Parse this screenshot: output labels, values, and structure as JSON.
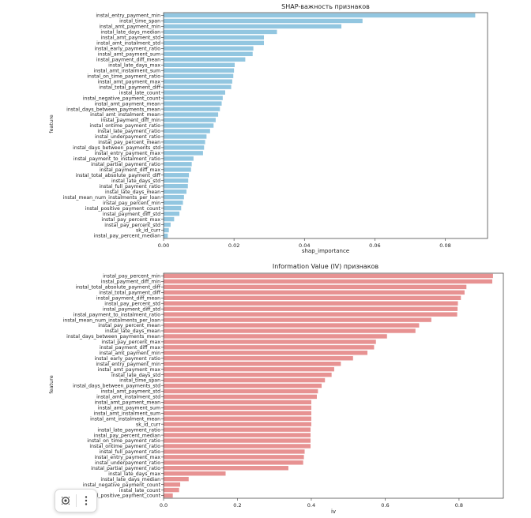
{
  "chart_data": [
    {
      "type": "bar",
      "orientation": "horizontal",
      "title": "SHAP-важность признаков",
      "xlabel": "shap_importance",
      "ylabel": "feature",
      "xlim": [
        0,
        0.092
      ],
      "xticks": [
        "0.00",
        "0.02",
        "0.04",
        "0.06",
        "0.08"
      ],
      "color": "#92c6e0",
      "categories": [
        "instal_entry_payment_min",
        "instal_time_span",
        "instal_amt_payment_min",
        "instal_late_days_median",
        "instal_amt_payment_std",
        "instal_amt_instalment_std",
        "instal_early_payment_ratio",
        "instal_amt_payment_sum",
        "instal_payment_diff_mean",
        "instal_late_days_max",
        "instal_amt_instalment_sum",
        "instal_on_time_payment_ratio",
        "instal_amt_payment_max",
        "instal_total_payment_diff",
        "instal_late_count",
        "instal_negative_payment_count",
        "instal_amt_payment_mean",
        "instal_days_between_payments_mean",
        "instal_amt_instalment_mean",
        "instal_payment_diff_min",
        "instal_ontime_payment_ratio",
        "instal_late_payment_ratio",
        "instal_underpayment_ratio",
        "instal_pay_percent_mean",
        "instal_days_between_payments_std",
        "instal_entry_payment_max",
        "instal_payment_to_instalment_ratio",
        "instal_partial_payment_ratio",
        "instal_payment_diff_max",
        "instal_total_absolute_payment_diff",
        "instal_late_days_std",
        "instal_full_payment_ratio",
        "instal_late_days_mean",
        "instal_mean_num_instalments_per_loan",
        "instal_pay_percent_min",
        "instal_positive_payment_count",
        "instal_payment_diff_std",
        "instal_pay_percent_max",
        "instal_pay_percent_std",
        "sk_id_curr",
        "instal_pay_percent_median"
      ],
      "values": [
        0.0885,
        0.0565,
        0.0505,
        0.0322,
        0.0285,
        0.0285,
        0.0255,
        0.0253,
        0.0232,
        0.0202,
        0.02,
        0.0198,
        0.0195,
        0.0192,
        0.0175,
        0.0168,
        0.0165,
        0.016,
        0.0155,
        0.0148,
        0.0142,
        0.0132,
        0.0122,
        0.0118,
        0.0115,
        0.0112,
        0.0085,
        0.008,
        0.0078,
        0.0072,
        0.007,
        0.0069,
        0.0065,
        0.0058,
        0.0055,
        0.005,
        0.0045,
        0.003,
        0.002,
        0.0015,
        0.0012
      ]
    },
    {
      "type": "bar",
      "orientation": "horizontal",
      "title": "Information Value (IV) признаков",
      "xlabel": "iv",
      "ylabel": "feature",
      "xlim": [
        0,
        0.92
      ],
      "xticks": [
        "0.0",
        "0.2",
        "0.4",
        "0.6",
        "0.8"
      ],
      "color": "#e79292",
      "categories": [
        "instal_pay_percent_min",
        "instal_payment_diff_min",
        "instal_total_absolute_payment_diff",
        "instal_total_payment_diff",
        "instal_payment_diff_mean",
        "instal_pay_percent_std",
        "instal_payment_diff_std",
        "instal_payment_to_instalment_ratio",
        "instal_mean_num_instalments_per_loan",
        "instal_pay_percent_mean",
        "instal_late_days_mean",
        "instal_days_between_payments_mean",
        "instal_pay_percent_max",
        "instal_payment_diff_max",
        "instal_amt_payment_min",
        "instal_early_payment_ratio",
        "instal_entry_payment_min",
        "instal_amt_payment_max",
        "instal_late_days_std",
        "instal_time_span",
        "instal_days_between_payments_std",
        "instal_amt_payment_std",
        "instal_amt_instalment_std",
        "instal_amt_payment_mean",
        "instal_amt_payment_sum",
        "instal_amt_instalment_sum",
        "instal_amt_instalment_mean",
        "sk_id_curr",
        "instal_late_payment_ratio",
        "instal_pay_percent_median",
        "instal_on_time_payment_ratio",
        "instal_ontime_payment_ratio",
        "instal_full_payment_ratio",
        "instal_entry_payment_max",
        "instal_underpayment_ratio",
        "instal_partial_payment_ratio",
        "instal_late_days_max",
        "instal_late_days_median",
        "instal_negative_payment_count",
        "instal_late_count",
        "instal_positive_payment_count"
      ],
      "values": [
        0.892,
        0.89,
        0.82,
        0.815,
        0.805,
        0.797,
        0.796,
        0.795,
        0.725,
        0.692,
        0.682,
        0.605,
        0.575,
        0.57,
        0.552,
        0.513,
        0.48,
        0.462,
        0.455,
        0.437,
        0.428,
        0.418,
        0.415,
        0.4,
        0.4,
        0.4,
        0.4,
        0.4,
        0.398,
        0.398,
        0.398,
        0.398,
        0.382,
        0.38,
        0.378,
        0.338,
        0.168,
        0.068,
        0.045,
        0.042,
        0.025
      ]
    }
  ],
  "toolbar": {
    "lens_icon": "lens-icon",
    "more_icon": "more-vertical-icon"
  }
}
